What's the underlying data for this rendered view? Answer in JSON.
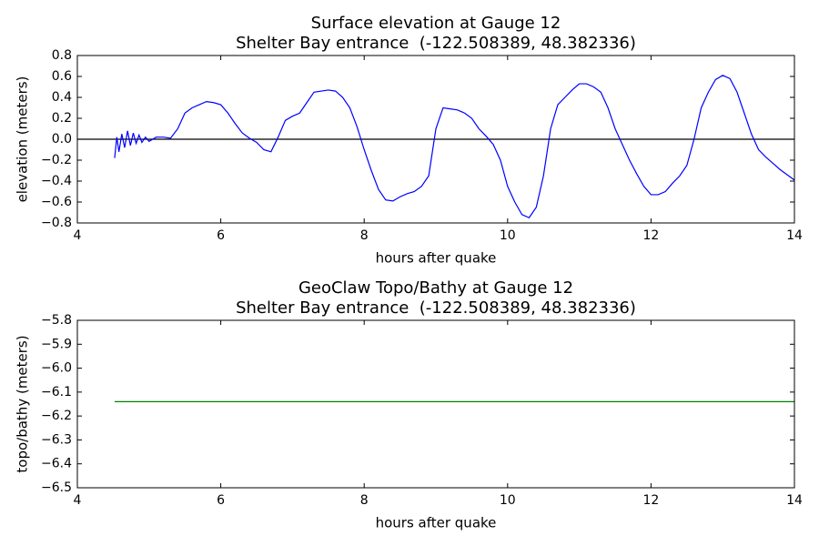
{
  "chart_data": [
    {
      "type": "line",
      "title": "Surface elevation at Gauge 12",
      "subtitle": "Shelter Bay entrance  (-122.508389, 48.382336)",
      "xlabel": "hours after quake",
      "ylabel": "elevation (meters)",
      "xlim": [
        4,
        14
      ],
      "xticks": [
        4,
        6,
        8,
        10,
        12,
        14
      ],
      "ylim": [
        -0.8,
        0.8
      ],
      "yticks": [
        {
          "value": -0.8,
          "label": "−0.8"
        },
        {
          "value": -0.6,
          "label": "−0.6"
        },
        {
          "value": -0.4,
          "label": "−0.4"
        },
        {
          "value": -0.2,
          "label": "−0.2"
        },
        {
          "value": 0,
          "label": "0.0"
        },
        0.2,
        0.4,
        0.6,
        0.8
      ],
      "hline": 0,
      "hline_color": "#000000",
      "x": [
        4.52,
        4.55,
        4.58,
        4.62,
        4.66,
        4.7,
        4.74,
        4.78,
        4.82,
        4.86,
        4.9,
        4.95,
        5.0,
        5.1,
        5.2,
        5.3,
        5.4,
        5.5,
        5.6,
        5.7,
        5.8,
        5.9,
        6.0,
        6.1,
        6.2,
        6.3,
        6.4,
        6.5,
        6.6,
        6.7,
        6.8,
        6.9,
        7.0,
        7.1,
        7.2,
        7.3,
        7.5,
        7.6,
        7.7,
        7.8,
        7.9,
        8.0,
        8.1,
        8.2,
        8.3,
        8.4,
        8.5,
        8.6,
        8.7,
        8.8,
        8.9,
        9.0,
        9.1,
        9.2,
        9.3,
        9.4,
        9.5,
        9.6,
        9.7,
        9.8,
        9.9,
        10.0,
        10.1,
        10.2,
        10.3,
        10.4,
        10.5,
        10.6,
        10.7,
        10.8,
        10.9,
        11.0,
        11.1,
        11.2,
        11.3,
        11.4,
        11.5,
        11.6,
        11.7,
        11.8,
        11.9,
        12.0,
        12.1,
        12.2,
        12.3,
        12.4,
        12.5,
        12.6,
        12.7,
        12.8,
        12.9,
        13.0,
        13.1,
        13.2,
        13.3,
        13.4,
        13.5,
        13.6,
        13.7,
        13.8,
        13.9,
        14.0
      ],
      "series": [
        {
          "color": "#0000ff",
          "values": [
            -0.18,
            0.02,
            -0.12,
            0.05,
            -0.08,
            0.08,
            -0.06,
            0.06,
            -0.04,
            0.04,
            -0.03,
            0.02,
            -0.02,
            0.02,
            0.02,
            0.01,
            0.1,
            0.25,
            0.3,
            0.33,
            0.36,
            0.35,
            0.33,
            0.25,
            0.15,
            0.06,
            0.01,
            -0.03,
            -0.1,
            -0.12,
            0.02,
            0.18,
            0.22,
            0.25,
            0.35,
            0.45,
            0.47,
            0.46,
            0.4,
            0.3,
            0.12,
            -0.1,
            -0.3,
            -0.48,
            -0.58,
            -0.59,
            -0.55,
            -0.52,
            -0.5,
            -0.45,
            -0.35,
            0.1,
            0.3,
            0.29,
            0.28,
            0.25,
            0.2,
            0.1,
            0.03,
            -0.05,
            -0.2,
            -0.45,
            -0.6,
            -0.72,
            -0.75,
            -0.65,
            -0.35,
            0.1,
            0.33,
            0.4,
            0.47,
            0.53,
            0.53,
            0.5,
            0.45,
            0.3,
            0.1,
            -0.05,
            -0.2,
            -0.33,
            -0.45,
            -0.53,
            -0.53,
            -0.5,
            -0.42,
            -0.35,
            -0.25,
            0.0,
            0.3,
            0.45,
            0.57,
            0.61,
            0.58,
            0.45,
            0.25,
            0.05,
            -0.1,
            -0.17,
            -0.23,
            -0.29,
            -0.34,
            -0.39
          ]
        }
      ]
    },
    {
      "type": "line",
      "title": "GeoClaw Topo/Bathy at Gauge 12",
      "subtitle": "Shelter Bay entrance  (-122.508389, 48.382336)",
      "xlabel": "hours after quake",
      "ylabel": "topo/bathy (meters)",
      "xlim": [
        4,
        14
      ],
      "xticks": [
        4,
        6,
        8,
        10,
        12,
        14
      ],
      "ylim": [
        -6.5,
        -5.8
      ],
      "yticks": [
        {
          "value": -6.5,
          "label": "−6.5"
        },
        {
          "value": -6.4,
          "label": "−6.4"
        },
        {
          "value": -6.3,
          "label": "−6.3"
        },
        {
          "value": -6.2,
          "label": "−6.2"
        },
        {
          "value": -6.1,
          "label": "−6.1"
        },
        {
          "value": -6.0,
          "label": "−6.0"
        },
        {
          "value": -5.9,
          "label": "−5.9"
        },
        {
          "value": -5.8,
          "label": "−5.8"
        }
      ],
      "x": [
        4.52,
        14.0
      ],
      "series": [
        {
          "color": "#008000",
          "values": [
            -6.14,
            -6.14
          ]
        }
      ]
    }
  ]
}
